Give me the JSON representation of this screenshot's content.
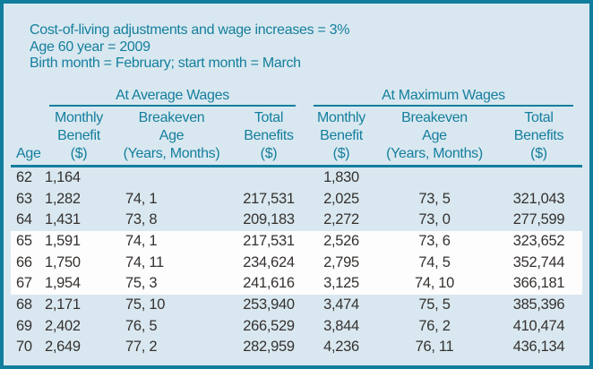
{
  "colors": {
    "border_teal": "#127e9e",
    "header_text_teal": "#147e9e",
    "background_light_blue": "#d9e8f0",
    "highlight_band_white": "#fdfdfd",
    "body_text": "#35312f"
  },
  "header": {
    "line1": "Cost-of-living adjustments and wage increases = 3%",
    "line2": "Age 60 year = 2009",
    "line3": "Birth month = February; start month = March"
  },
  "table": {
    "age_label": "Age",
    "groups": [
      {
        "label": "At Average Wages"
      },
      {
        "label": "At Maximum Wages"
      }
    ],
    "columns": [
      {
        "group": 0,
        "lines": [
          "Monthly",
          "Benefit",
          "($)"
        ]
      },
      {
        "group": 0,
        "lines": [
          "Breakeven",
          "Age",
          "(Years, Months)"
        ]
      },
      {
        "group": 0,
        "lines": [
          "Total",
          "Benefits",
          "($)"
        ]
      },
      {
        "group": 1,
        "lines": [
          "Monthly",
          "Benefit",
          "($)"
        ]
      },
      {
        "group": 1,
        "lines": [
          "Breakeven",
          "Age",
          "(Years, Months)"
        ]
      },
      {
        "group": 1,
        "lines": [
          "Total",
          "Benefits",
          "($)"
        ]
      }
    ],
    "rows": [
      {
        "age": "62",
        "cells": [
          "1,164",
          "",
          "",
          "1,830",
          "",
          ""
        ],
        "highlight": false
      },
      {
        "age": "63",
        "cells": [
          "1,282",
          "74, 1",
          "217,531",
          "2,025",
          "73, 5",
          "321,043"
        ],
        "highlight": false
      },
      {
        "age": "64",
        "cells": [
          "1,431",
          "73, 8",
          "209,183",
          "2,272",
          "73, 0",
          "277,599"
        ],
        "highlight": false
      },
      {
        "age": "65",
        "cells": [
          "1,591",
          "74, 1",
          "217,531",
          "2,526",
          "73, 6",
          "323,652"
        ],
        "highlight": true
      },
      {
        "age": "66",
        "cells": [
          "1,750",
          "74, 11",
          "234,624",
          "2,795",
          "74, 5",
          "352,744"
        ],
        "highlight": true
      },
      {
        "age": "67",
        "cells": [
          "1,954",
          "75, 3",
          "241,616",
          "3,125",
          "74, 10",
          "366,181"
        ],
        "highlight": true
      },
      {
        "age": "68",
        "cells": [
          "2,171",
          "75, 10",
          "253,940",
          "3,474",
          "75, 5",
          "385,396"
        ],
        "highlight": false
      },
      {
        "age": "69",
        "cells": [
          "2,402",
          "76, 5",
          "266,529",
          "3,844",
          "76, 2",
          "410,474"
        ],
        "highlight": false
      },
      {
        "age": "70",
        "cells": [
          "2,649",
          "77, 2",
          "282,959",
          "4,236",
          "76, 11",
          "436,134"
        ],
        "highlight": false
      }
    ]
  }
}
